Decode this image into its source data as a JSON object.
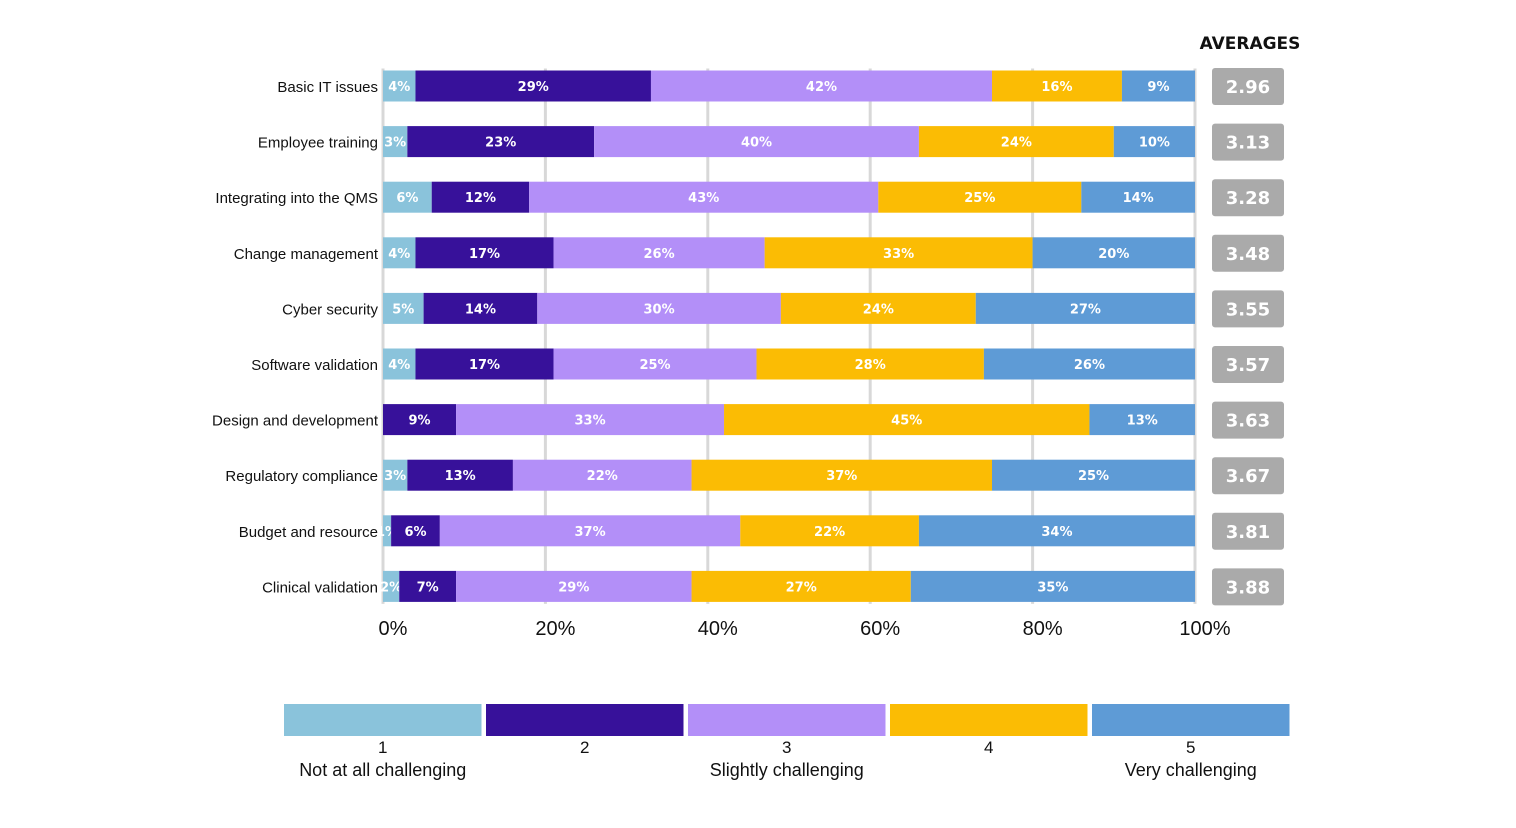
{
  "chart_data": {
    "type": "bar",
    "orientation": "horizontal",
    "stacked": true,
    "categories": [
      "Basic IT issues",
      "Employee training",
      "Integrating into the QMS",
      "Change management",
      "Cyber security",
      "Software validation",
      "Design and development",
      "Regulatory compliance",
      "Budget and resource",
      "Clinical validation"
    ],
    "series": [
      {
        "name": "1",
        "color": "#8ac3db",
        "values": [
          4,
          3,
          6,
          4,
          5,
          4,
          0,
          3,
          1,
          2
        ]
      },
      {
        "name": "2",
        "color": "#37119a",
        "values": [
          29,
          23,
          12,
          17,
          14,
          17,
          9,
          13,
          6,
          7
        ]
      },
      {
        "name": "3",
        "color": "#b38ff8",
        "values": [
          42,
          40,
          43,
          26,
          30,
          25,
          33,
          22,
          37,
          29
        ]
      },
      {
        "name": "4",
        "color": "#fbbc04",
        "values": [
          16,
          24,
          25,
          33,
          24,
          28,
          45,
          37,
          22,
          27
        ]
      },
      {
        "name": "5",
        "color": "#5e9bd6",
        "values": [
          9,
          10,
          14,
          20,
          27,
          26,
          13,
          25,
          34,
          35
        ]
      }
    ],
    "data_labels": [
      [
        "4%",
        "29%",
        "42%",
        "16%",
        "9%"
      ],
      [
        "3%",
        "23%",
        "40%",
        "24%",
        "10%"
      ],
      [
        "6%",
        "12%",
        "43%",
        "25%",
        "14%"
      ],
      [
        "4%",
        "17%",
        "26%",
        "33%",
        "20%"
      ],
      [
        "5%",
        "14%",
        "30%",
        "24%",
        "27%"
      ],
      [
        "4%",
        "17%",
        "25%",
        "28%",
        "26%"
      ],
      [
        "",
        "9%",
        "33%",
        "45%",
        "13%"
      ],
      [
        "3%",
        "13%",
        "22%",
        "37%",
        "25%"
      ],
      [
        "1%",
        "6%",
        "37%",
        "22%",
        "34%"
      ],
      [
        "2%",
        "7%",
        "29%",
        "27%",
        "35%"
      ]
    ],
    "xlim": [
      0,
      100
    ],
    "x_ticks": [
      "0%",
      "20%",
      "40%",
      "60%",
      "80%",
      "100%"
    ],
    "grid": true,
    "legend_position": "bottom",
    "legend": [
      {
        "num": "1",
        "desc": "Not at all challenging"
      },
      {
        "num": "2",
        "desc": ""
      },
      {
        "num": "3",
        "desc": "Slightly challenging"
      },
      {
        "num": "4",
        "desc": ""
      },
      {
        "num": "5",
        "desc": "Very challenging"
      }
    ],
    "averages_title": "AVERAGES",
    "averages": [
      "2.96",
      "3.13",
      "3.28",
      "3.48",
      "3.55",
      "3.57",
      "3.63",
      "3.67",
      "3.81",
      "3.88"
    ],
    "average_box_color": "#aaaaaa"
  }
}
